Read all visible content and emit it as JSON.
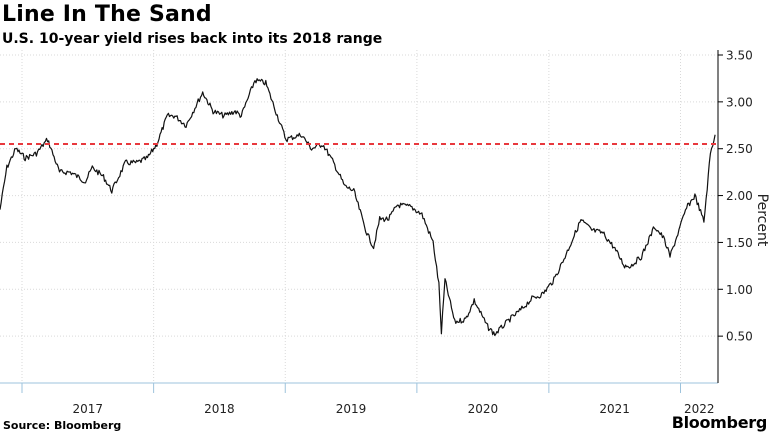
{
  "header": {
    "title": "Line In The Sand",
    "subtitle": "U.S. 10-year yield rises back into its 2018 range"
  },
  "footer": {
    "source": "Source: Bloomberg",
    "brand": "Bloomberg"
  },
  "colors": {
    "line": "#111111",
    "threshold": "#e8383d",
    "grid": "#d9d9d9",
    "axis": "#9ec3dc"
  },
  "chart_data": {
    "type": "line",
    "title": "Line In The Sand",
    "subtitle": "U.S. 10-year yield rises back into its 2018 range",
    "xlabel": "",
    "ylabel": "Percent",
    "y_axis_side": "right",
    "ylim": [
      0,
      3.5
    ],
    "yticks": [
      0.5,
      1.0,
      1.5,
      2.0,
      2.5,
      3.0,
      3.5
    ],
    "ytick_labels": [
      "0.50",
      "1.00",
      "1.50",
      "2.00",
      "2.50",
      "3.00",
      "3.50"
    ],
    "xlim": [
      "2016-11-01",
      "2022-04-15"
    ],
    "x_year_labels": [
      "2017",
      "2018",
      "2019",
      "2020",
      "2021",
      "2022"
    ],
    "grid": true,
    "threshold_line": {
      "value": 2.55,
      "style": "dashed",
      "color": "#e8383d"
    },
    "series": [
      {
        "name": "",
        "x": [
          "2016-11-01",
          "2016-11-20",
          "2016-12-15",
          "2017-01-10",
          "2017-02-10",
          "2017-03-13",
          "2017-04-15",
          "2017-05-15",
          "2017-06-26",
          "2017-07-15",
          "2017-08-15",
          "2017-09-07",
          "2017-10-15",
          "2017-11-15",
          "2017-12-15",
          "2018-01-10",
          "2018-02-08",
          "2018-03-01",
          "2018-04-01",
          "2018-05-17",
          "2018-06-15",
          "2018-07-15",
          "2018-08-15",
          "2018-09-01",
          "2018-10-09",
          "2018-11-08",
          "2018-12-01",
          "2019-01-03",
          "2019-02-15",
          "2019-03-15",
          "2019-04-15",
          "2019-05-15",
          "2019-06-15",
          "2019-07-10",
          "2019-08-15",
          "2019-09-03",
          "2019-09-20",
          "2019-10-15",
          "2019-11-08",
          "2019-12-15",
          "2020-01-15",
          "2020-02-15",
          "2020-03-02",
          "2020-03-09",
          "2020-03-19",
          "2020-04-15",
          "2020-05-15",
          "2020-06-08",
          "2020-07-15",
          "2020-08-04",
          "2020-09-15",
          "2020-10-15",
          "2020-11-15",
          "2020-12-15",
          "2021-01-15",
          "2021-02-15",
          "2021-03-31",
          "2021-04-30",
          "2021-05-31",
          "2021-06-30",
          "2021-07-30",
          "2021-08-16",
          "2021-09-15",
          "2021-10-21",
          "2021-11-15",
          "2021-12-03",
          "2022-01-18",
          "2022-02-10",
          "2022-03-07",
          "2022-03-25",
          "2022-04-07"
        ],
        "y": [
          1.85,
          2.3,
          2.5,
          2.4,
          2.45,
          2.6,
          2.25,
          2.25,
          2.15,
          2.3,
          2.2,
          2.05,
          2.35,
          2.35,
          2.4,
          2.55,
          2.85,
          2.85,
          2.75,
          3.1,
          2.9,
          2.85,
          2.9,
          2.85,
          3.23,
          3.2,
          2.95,
          2.6,
          2.65,
          2.5,
          2.55,
          2.35,
          2.1,
          2.05,
          1.6,
          1.45,
          1.75,
          1.75,
          1.9,
          1.88,
          1.8,
          1.5,
          1.05,
          0.54,
          1.1,
          0.65,
          0.68,
          0.88,
          0.6,
          0.52,
          0.68,
          0.78,
          0.9,
          0.95,
          1.1,
          1.35,
          1.74,
          1.63,
          1.6,
          1.45,
          1.25,
          1.25,
          1.35,
          1.67,
          1.55,
          1.35,
          1.87,
          2.0,
          1.72,
          2.45,
          2.65
        ]
      }
    ]
  }
}
